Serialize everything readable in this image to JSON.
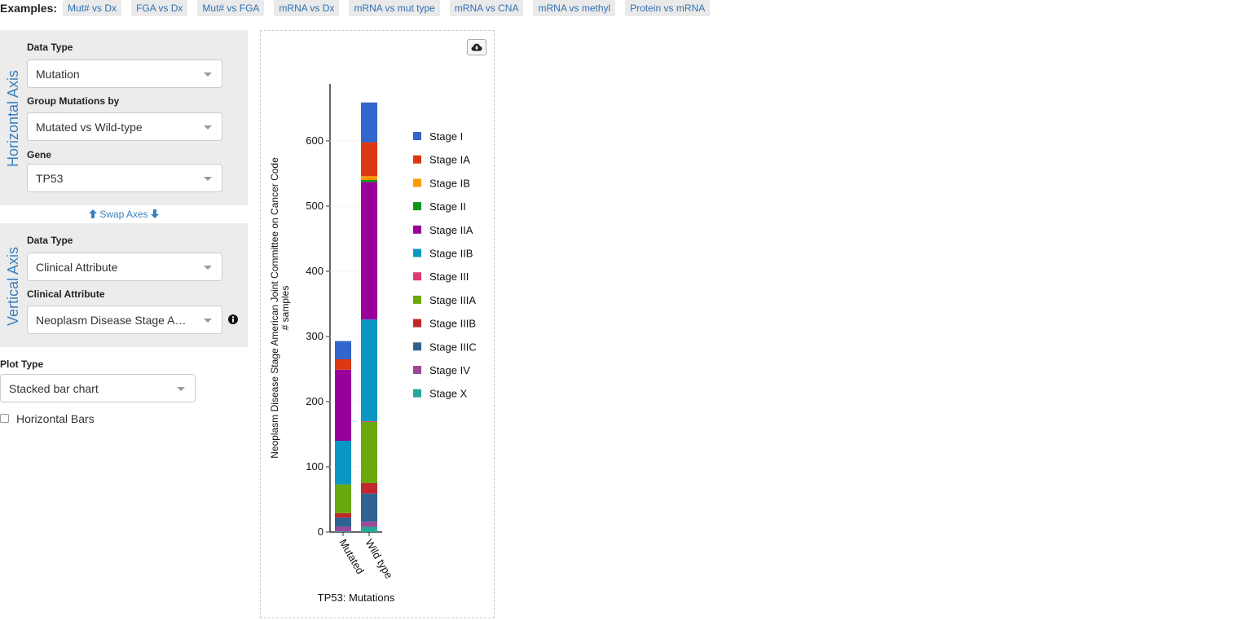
{
  "examples": {
    "label": "Examples:",
    "items": [
      "Mut# vs Dx",
      "FGA vs Dx",
      "Mut# vs FGA",
      "mRNA vs Dx",
      "mRNA vs mut type",
      "mRNA vs CNA",
      "mRNA vs methyl",
      "Protein vs mRNA"
    ]
  },
  "horizontal": {
    "title": "Horizontal Axis",
    "data_type_label": "Data Type",
    "data_type": "Mutation",
    "group_label": "Group Mutations by",
    "group": "Mutated vs Wild-type",
    "gene_label": "Gene",
    "gene": "TP53"
  },
  "swap": {
    "label": "Swap Axes"
  },
  "vertical": {
    "title": "Vertical Axis",
    "data_type_label": "Data Type",
    "data_type": "Clinical Attribute",
    "attr_label": "Clinical Attribute",
    "attr": "Neoplasm Disease Stage American Joint Committee on Cancer Code",
    "info_icon": "info-circle-icon"
  },
  "plot": {
    "type_label": "Plot Type",
    "type": "Stacked bar chart",
    "horizontal_label": "Horizontal Bars",
    "horizontal_checked": false
  },
  "download_icon": "cloud-download-icon",
  "chart_data": {
    "type": "bar",
    "stacked": true,
    "categories": [
      "Mutated",
      "Wild type"
    ],
    "ylabel": "Neoplasm Disease Stage American Joint Committee on Cancer Code",
    "ylabel2": "# samples",
    "xlabel": "TP53: Mutations",
    "ylim": [
      0,
      690
    ],
    "yticks": [
      0,
      100,
      200,
      300,
      400,
      500,
      600
    ],
    "legend_position": "right",
    "series": [
      {
        "name": "Stage X",
        "color": "#26a69a",
        "values": [
          1,
          8
        ]
      },
      {
        "name": "Stage IV",
        "color": "#9b4a9b",
        "values": [
          7,
          8
        ]
      },
      {
        "name": "Stage IIIC",
        "color": "#2e6391",
        "values": [
          14,
          43
        ]
      },
      {
        "name": "Stage IIIB",
        "color": "#c0282c",
        "values": [
          7,
          16
        ]
      },
      {
        "name": "Stage IIIA",
        "color": "#6aa90b",
        "values": [
          44,
          94
        ]
      },
      {
        "name": "Stage III",
        "color": "#dc3b70",
        "values": [
          0,
          1
        ]
      },
      {
        "name": "Stage IIB",
        "color": "#0b97c4",
        "values": [
          67,
          156
        ]
      },
      {
        "name": "Stage IIA",
        "color": "#990099",
        "values": [
          109,
          211
        ]
      },
      {
        "name": "Stage II",
        "color": "#109618",
        "values": [
          0,
          3
        ]
      },
      {
        "name": "Stage IB",
        "color": "#ff9900",
        "values": [
          0,
          6
        ]
      },
      {
        "name": "Stage IA",
        "color": "#dc3912",
        "values": [
          16,
          52
        ]
      },
      {
        "name": "Stage I",
        "color": "#3366cc",
        "values": [
          28,
          61
        ]
      }
    ],
    "legend_order": [
      "Stage I",
      "Stage IA",
      "Stage IB",
      "Stage II",
      "Stage IIA",
      "Stage IIB",
      "Stage III",
      "Stage IIIA",
      "Stage IIIB",
      "Stage IIIC",
      "Stage IV",
      "Stage X"
    ]
  }
}
